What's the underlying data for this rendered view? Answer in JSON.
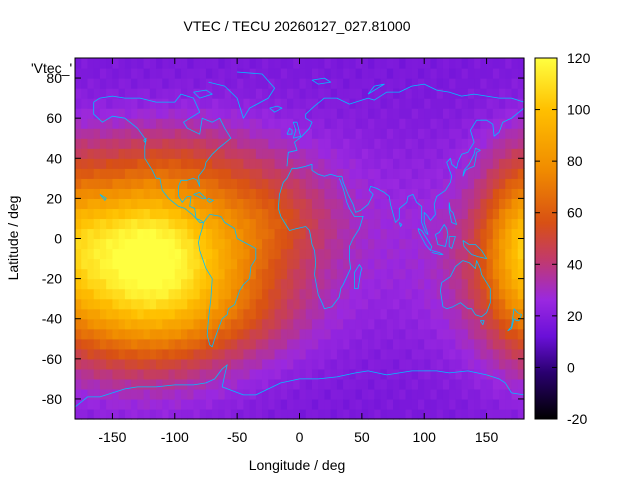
{
  "chart_data": {
    "type": "heatmap",
    "title": "VTEC / TECU 20260127_027.81000",
    "xlabel": "Longitude / deg",
    "ylabel": "Latitude / deg",
    "series_label": "'Vtec_'",
    "xlim": [
      -180,
      180
    ],
    "ylim": [
      -90,
      90
    ],
    "x_ticks": [
      -150,
      -100,
      -50,
      0,
      50,
      100,
      150
    ],
    "y_ticks": [
      -80,
      -60,
      -40,
      -20,
      0,
      20,
      40,
      60,
      80
    ],
    "colorbar": {
      "range": [
        -20,
        120
      ],
      "ticks": [
        -20,
        0,
        20,
        40,
        60,
        80,
        100,
        120
      ],
      "palette": [
        "#000000",
        "#2a0070",
        "#6a10d8",
        "#9a28e0",
        "#c23a6a",
        "#d85014",
        "#f08a00",
        "#ffc000",
        "#ffff40"
      ],
      "palette_stops": [
        -20,
        -2,
        12,
        26,
        42,
        56,
        76,
        100,
        120
      ]
    },
    "grid_step_deg": 5,
    "anomalies": [
      {
        "lon": -125,
        "lat": -20,
        "peak": 85,
        "slon": 55,
        "slat": 30
      },
      {
        "lon": -70,
        "lat": 5,
        "peak": 25,
        "slon": 70,
        "slat": 30
      },
      {
        "lon": -140,
        "lat": 8,
        "peak": 15,
        "slon": 40,
        "slat": 15
      },
      {
        "lon": -20,
        "lat": 10,
        "peak": 10,
        "slon": 30,
        "slat": 15
      },
      {
        "lon": 175,
        "lat": 0,
        "peak": 25,
        "slon": 20,
        "slat": 30
      },
      {
        "lon": -110,
        "lat": 40,
        "peak": 12,
        "slon": 60,
        "slat": 15
      },
      {
        "lon": -40,
        "lat": -40,
        "peak": 10,
        "slon": 40,
        "slat": 15
      }
    ],
    "background_level": 20,
    "coastline_color": "#00bfff"
  }
}
